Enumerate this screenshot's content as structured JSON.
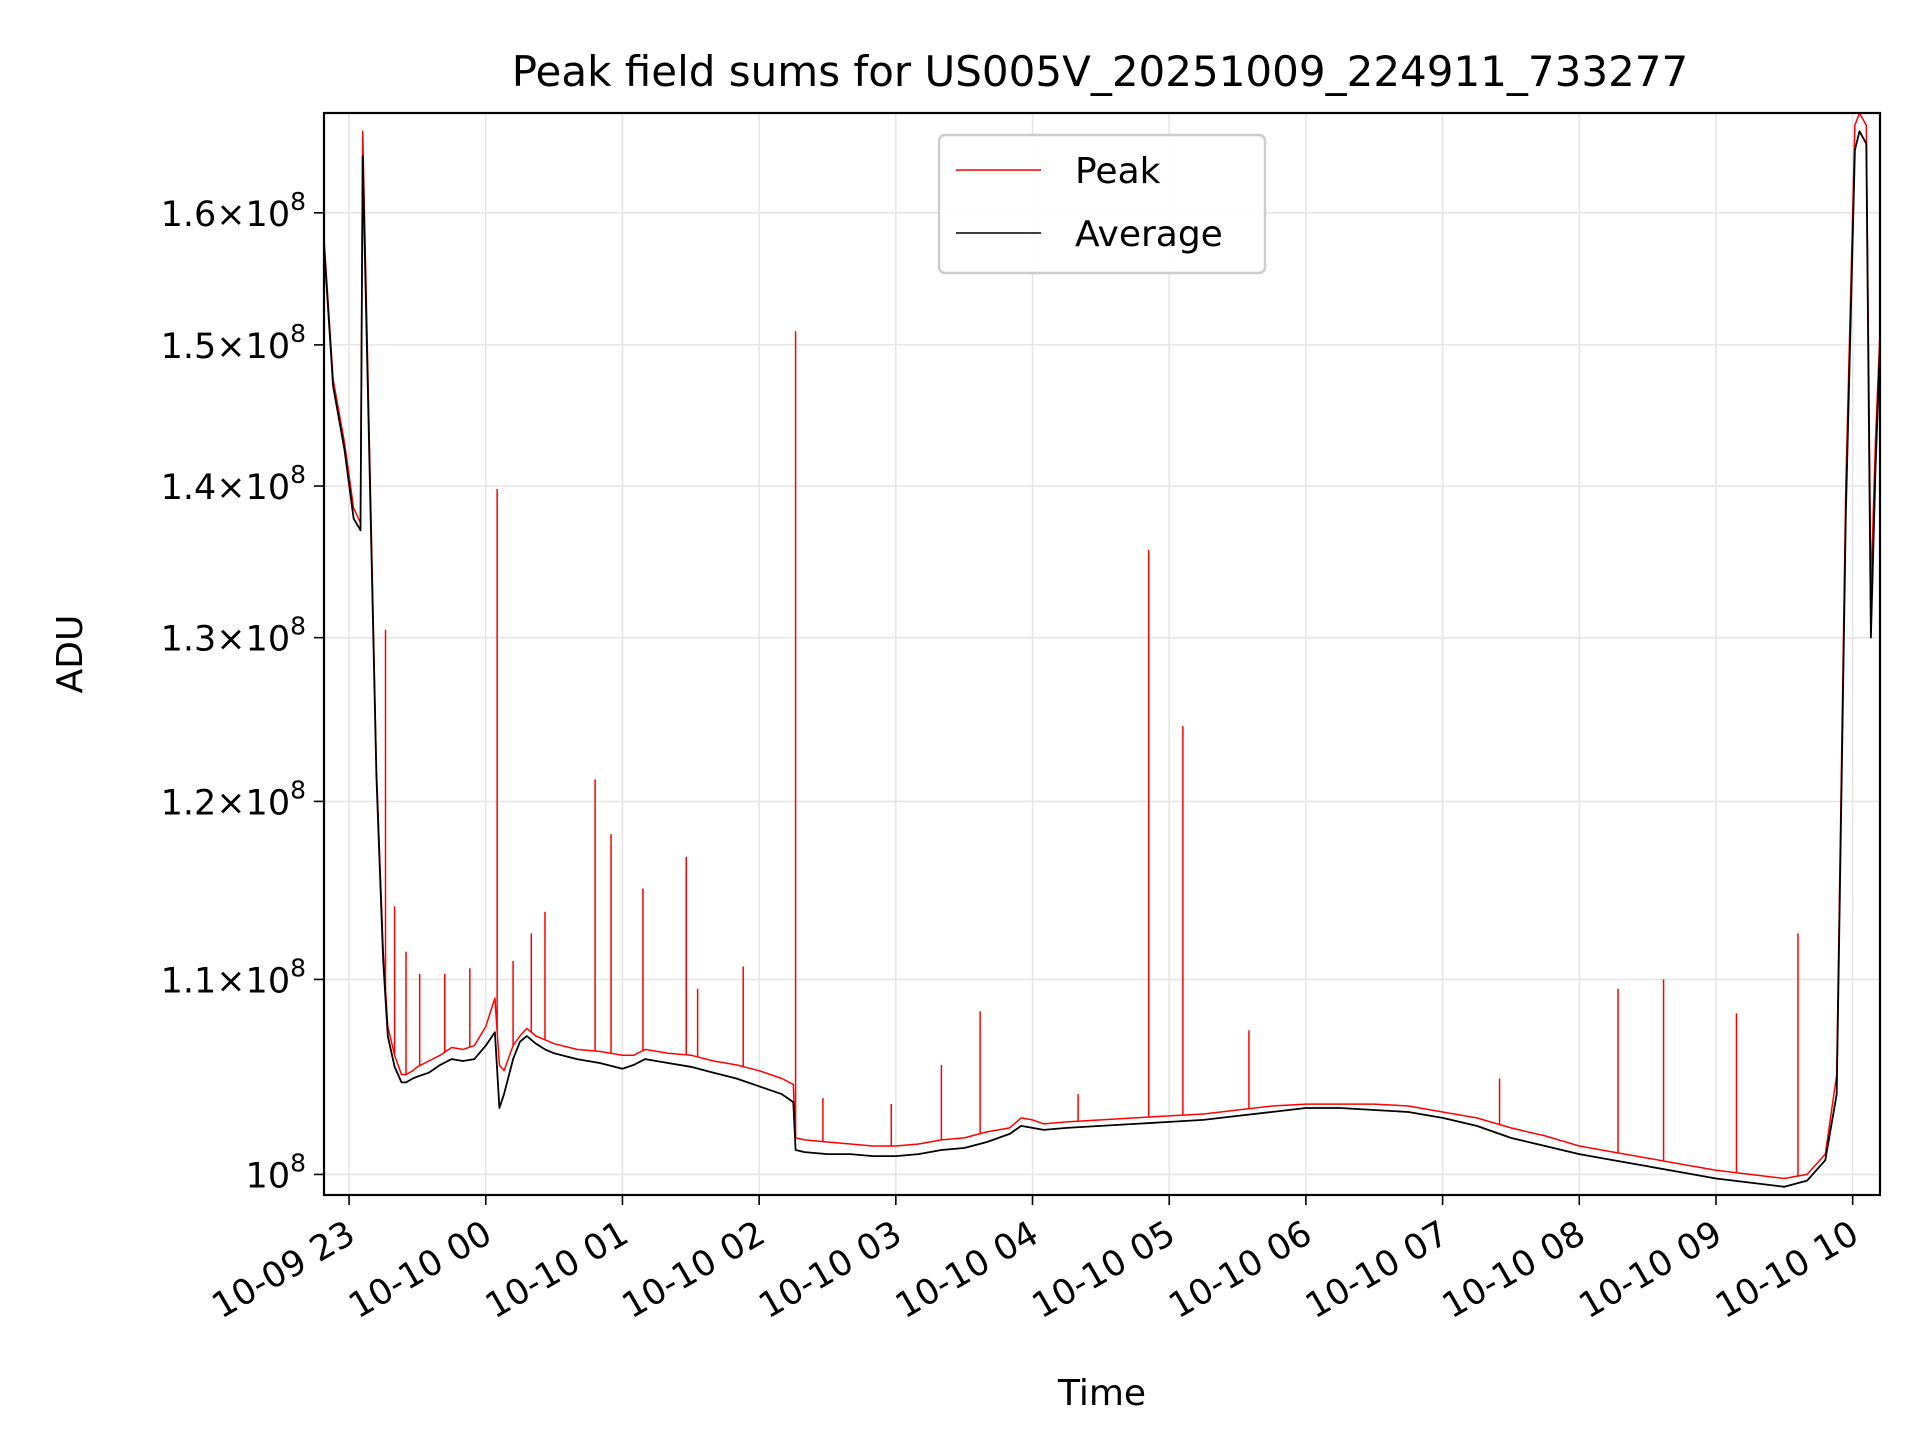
{
  "chart_data": {
    "type": "line",
    "title": "Peak field sums for US005V_20251009_224911_733277",
    "xlabel": "Time",
    "ylabel": "ADU",
    "yscale": "log",
    "xlim": [
      "2025-10-09 22:49",
      "2025-10-10 10:12"
    ],
    "ylim": [
      99000000,
      168000000
    ],
    "grid": true,
    "legend_position": "upper center",
    "x_ticks": [
      "2025-10-09 23:00",
      "2025-10-10 00:00",
      "2025-10-10 01:00",
      "2025-10-10 02:00",
      "2025-10-10 03:00",
      "2025-10-10 04:00",
      "2025-10-10 05:00",
      "2025-10-10 06:00",
      "2025-10-10 07:00",
      "2025-10-10 08:00",
      "2025-10-10 09:00",
      "2025-10-10 10:00"
    ],
    "x_tick_labels": [
      "10-09 23",
      "10-10 00",
      "10-10 01",
      "10-10 02",
      "10-10 03",
      "10-10 04",
      "10-10 05",
      "10-10 06",
      "10-10 07",
      "10-10 08",
      "10-10 09",
      "10-10 10"
    ],
    "y_ticks": [
      100000000,
      110000000,
      120000000,
      130000000,
      140000000,
      150000000,
      160000000
    ],
    "y_tick_labels": [
      {
        "mantissa": "",
        "exp": "8"
      },
      {
        "mantissa": "1.1",
        "exp": "8"
      },
      {
        "mantissa": "1.2",
        "exp": "8"
      },
      {
        "mantissa": "1.3",
        "exp": "8"
      },
      {
        "mantissa": "1.4",
        "exp": "8"
      },
      {
        "mantissa": "1.5",
        "exp": "8"
      },
      {
        "mantissa": "1.6",
        "exp": "8"
      }
    ],
    "series": [
      {
        "name": "Peak",
        "color": "#ff0000",
        "x": [
          "2025-10-09 22:49",
          "2025-10-09 22:53",
          "2025-10-09 22:58",
          "2025-10-09 23:02",
          "2025-10-09 23:05",
          "2025-10-09 23:06",
          "2025-10-09 23:08",
          "2025-10-09 23:12",
          "2025-10-09 23:15",
          "2025-10-09 23:17",
          "2025-10-09 23:20",
          "2025-10-09 23:23",
          "2025-10-09 23:25",
          "2025-10-09 23:28",
          "2025-10-09 23:30",
          "2025-10-09 23:35",
          "2025-10-09 23:40",
          "2025-10-09 23:45",
          "2025-10-09 23:50",
          "2025-10-09 23:55",
          "2025-10-10 00:00",
          "2025-10-10 00:04",
          "2025-10-10 00:06",
          "2025-10-10 00:08",
          "2025-10-10 00:12",
          "2025-10-10 00:15",
          "2025-10-10 00:18",
          "2025-10-10 00:22",
          "2025-10-10 00:26",
          "2025-10-10 00:30",
          "2025-10-10 00:40",
          "2025-10-10 00:50",
          "2025-10-10 01:00",
          "2025-10-10 01:05",
          "2025-10-10 01:10",
          "2025-10-10 01:20",
          "2025-10-10 01:30",
          "2025-10-10 01:40",
          "2025-10-10 01:50",
          "2025-10-10 02:00",
          "2025-10-10 02:10",
          "2025-10-10 02:15",
          "2025-10-10 02:16",
          "2025-10-10 02:20",
          "2025-10-10 02:30",
          "2025-10-10 02:40",
          "2025-10-10 02:50",
          "2025-10-10 03:00",
          "2025-10-10 03:10",
          "2025-10-10 03:20",
          "2025-10-10 03:30",
          "2025-10-10 03:40",
          "2025-10-10 03:50",
          "2025-10-10 03:55",
          "2025-10-10 04:00",
          "2025-10-10 04:05",
          "2025-10-10 04:15",
          "2025-10-10 04:30",
          "2025-10-10 04:45",
          "2025-10-10 05:00",
          "2025-10-10 05:15",
          "2025-10-10 05:30",
          "2025-10-10 05:45",
          "2025-10-10 06:00",
          "2025-10-10 06:15",
          "2025-10-10 06:30",
          "2025-10-10 06:45",
          "2025-10-10 07:00",
          "2025-10-10 07:15",
          "2025-10-10 07:30",
          "2025-10-10 07:45",
          "2025-10-10 08:00",
          "2025-10-10 08:15",
          "2025-10-10 08:30",
          "2025-10-10 08:45",
          "2025-10-10 09:00",
          "2025-10-10 09:15",
          "2025-10-10 09:30",
          "2025-10-10 09:40",
          "2025-10-10 09:48",
          "2025-10-10 09:53",
          "2025-10-10 09:57",
          "2025-10-10 10:01",
          "2025-10-10 10:03",
          "2025-10-10 10:06",
          "2025-10-10 10:08",
          "2025-10-10 10:10",
          "2025-10-10 10:12"
        ],
        "values": [
          158000000,
          147500000,
          143000000,
          138500000,
          137500000,
          166500000,
          150000000,
          122000000,
          111500000,
          107500000,
          106000000,
          105000000,
          105000000,
          105200000,
          105400000,
          105700000,
          106000000,
          106400000,
          106300000,
          106500000,
          107500000,
          109000000,
          105500000,
          105200000,
          106500000,
          107000000,
          107400000,
          107000000,
          106800000,
          106600000,
          106300000,
          106200000,
          106000000,
          106000000,
          106300000,
          106100000,
          106000000,
          105700000,
          105500000,
          105200000,
          104800000,
          104500000,
          101800000,
          101700000,
          101600000,
          101500000,
          101400000,
          101400000,
          101500000,
          101700000,
          101800000,
          102100000,
          102300000,
          102800000,
          102700000,
          102500000,
          102600000,
          102700000,
          102800000,
          102900000,
          103000000,
          103200000,
          103400000,
          103500000,
          103500000,
          103500000,
          103400000,
          103100000,
          102800000,
          102300000,
          101900000,
          101400000,
          101100000,
          100800000,
          100500000,
          100200000,
          100000000,
          99800000,
          100000000,
          101000000,
          105000000,
          140000000,
          167000000,
          168000000,
          167000000,
          133000000,
          143000000,
          151000000
        ],
        "spikes": [
          {
            "x": "2025-10-09 23:16",
            "value": 130500000
          },
          {
            "x": "2025-10-09 23:20",
            "value": 114000000
          },
          {
            "x": "2025-10-09 23:25",
            "value": 111500000
          },
          {
            "x": "2025-10-09 23:31",
            "value": 110300000
          },
          {
            "x": "2025-10-09 23:42",
            "value": 110300000
          },
          {
            "x": "2025-10-09 23:53",
            "value": 110600000
          },
          {
            "x": "2025-10-10 00:05",
            "value": 139800000
          },
          {
            "x": "2025-10-10 00:12",
            "value": 111000000
          },
          {
            "x": "2025-10-10 00:20",
            "value": 112500000
          },
          {
            "x": "2025-10-10 00:26",
            "value": 113700000
          },
          {
            "x": "2025-10-10 00:48",
            "value": 121300000
          },
          {
            "x": "2025-10-10 00:55",
            "value": 118100000
          },
          {
            "x": "2025-10-10 01:09",
            "value": 115000000
          },
          {
            "x": "2025-10-10 01:28",
            "value": 116800000
          },
          {
            "x": "2025-10-10 01:33",
            "value": 109500000
          },
          {
            "x": "2025-10-10 01:53",
            "value": 110700000
          },
          {
            "x": "2025-10-10 02:16",
            "value": 151000000
          },
          {
            "x": "2025-10-10 02:28",
            "value": 103800000
          },
          {
            "x": "2025-10-10 02:58",
            "value": 103500000
          },
          {
            "x": "2025-10-10 03:20",
            "value": 105500000
          },
          {
            "x": "2025-10-10 03:37",
            "value": 108300000
          },
          {
            "x": "2025-10-10 04:20",
            "value": 104000000
          },
          {
            "x": "2025-10-10 04:51",
            "value": 135700000
          },
          {
            "x": "2025-10-10 05:06",
            "value": 124500000
          },
          {
            "x": "2025-10-10 05:35",
            "value": 107300000
          },
          {
            "x": "2025-10-10 07:25",
            "value": 104800000
          },
          {
            "x": "2025-10-10 08:17",
            "value": 109500000
          },
          {
            "x": "2025-10-10 08:37",
            "value": 110000000
          },
          {
            "x": "2025-10-10 09:09",
            "value": 108200000
          },
          {
            "x": "2025-10-10 09:36",
            "value": 112500000
          }
        ]
      },
      {
        "name": "Average",
        "color": "#000000",
        "x": [
          "2025-10-09 22:49",
          "2025-10-09 22:53",
          "2025-10-09 22:58",
          "2025-10-09 23:02",
          "2025-10-09 23:05",
          "2025-10-09 23:06",
          "2025-10-09 23:08",
          "2025-10-09 23:12",
          "2025-10-09 23:15",
          "2025-10-09 23:17",
          "2025-10-09 23:20",
          "2025-10-09 23:23",
          "2025-10-09 23:25",
          "2025-10-09 23:28",
          "2025-10-09 23:30",
          "2025-10-09 23:35",
          "2025-10-09 23:40",
          "2025-10-09 23:45",
          "2025-10-09 23:50",
          "2025-10-09 23:55",
          "2025-10-10 00:00",
          "2025-10-10 00:04",
          "2025-10-10 00:06",
          "2025-10-10 00:08",
          "2025-10-10 00:12",
          "2025-10-10 00:15",
          "2025-10-10 00:18",
          "2025-10-10 00:22",
          "2025-10-10 00:26",
          "2025-10-10 00:30",
          "2025-10-10 00:40",
          "2025-10-10 00:50",
          "2025-10-10 01:00",
          "2025-10-10 01:05",
          "2025-10-10 01:10",
          "2025-10-10 01:20",
          "2025-10-10 01:30",
          "2025-10-10 01:40",
          "2025-10-10 01:50",
          "2025-10-10 02:00",
          "2025-10-10 02:10",
          "2025-10-10 02:15",
          "2025-10-10 02:16",
          "2025-10-10 02:20",
          "2025-10-10 02:30",
          "2025-10-10 02:40",
          "2025-10-10 02:50",
          "2025-10-10 03:00",
          "2025-10-10 03:10",
          "2025-10-10 03:20",
          "2025-10-10 03:30",
          "2025-10-10 03:40",
          "2025-10-10 03:50",
          "2025-10-10 03:55",
          "2025-10-10 04:00",
          "2025-10-10 04:05",
          "2025-10-10 04:15",
          "2025-10-10 04:30",
          "2025-10-10 04:45",
          "2025-10-10 05:00",
          "2025-10-10 05:15",
          "2025-10-10 05:30",
          "2025-10-10 05:45",
          "2025-10-10 06:00",
          "2025-10-10 06:15",
          "2025-10-10 06:30",
          "2025-10-10 06:45",
          "2025-10-10 07:00",
          "2025-10-10 07:15",
          "2025-10-10 07:30",
          "2025-10-10 07:45",
          "2025-10-10 08:00",
          "2025-10-10 08:15",
          "2025-10-10 08:30",
          "2025-10-10 08:45",
          "2025-10-10 09:00",
          "2025-10-10 09:15",
          "2025-10-10 09:30",
          "2025-10-10 09:40",
          "2025-10-10 09:48",
          "2025-10-10 09:53",
          "2025-10-10 09:57",
          "2025-10-10 10:01",
          "2025-10-10 10:03",
          "2025-10-10 10:06",
          "2025-10-10 10:08",
          "2025-10-10 10:10",
          "2025-10-10 10:12"
        ],
        "values": [
          157500000,
          147000000,
          142500000,
          137800000,
          137000000,
          164500000,
          148500000,
          121500000,
          111000000,
          107000000,
          105400000,
          104600000,
          104600000,
          104800000,
          104900000,
          105100000,
          105500000,
          105800000,
          105700000,
          105800000,
          106500000,
          107200000,
          103300000,
          104000000,
          105800000,
          106700000,
          107000000,
          106600000,
          106300000,
          106100000,
          105800000,
          105600000,
          105300000,
          105500000,
          105800000,
          105600000,
          105400000,
          105100000,
          104800000,
          104400000,
          104000000,
          103600000,
          101200000,
          101100000,
          101000000,
          101000000,
          100900000,
          100900000,
          101000000,
          101200000,
          101300000,
          101600000,
          102000000,
          102400000,
          102300000,
          102200000,
          102300000,
          102400000,
          102500000,
          102600000,
          102700000,
          102900000,
          103100000,
          103300000,
          103300000,
          103200000,
          103100000,
          102800000,
          102400000,
          101800000,
          101400000,
          101000000,
          100700000,
          100400000,
          100100000,
          99800000,
          99600000,
          99400000,
          99700000,
          100700000,
          104000000,
          138000000,
          165000000,
          166500000,
          165500000,
          130000000,
          141000000,
          150000000
        ]
      }
    ]
  }
}
